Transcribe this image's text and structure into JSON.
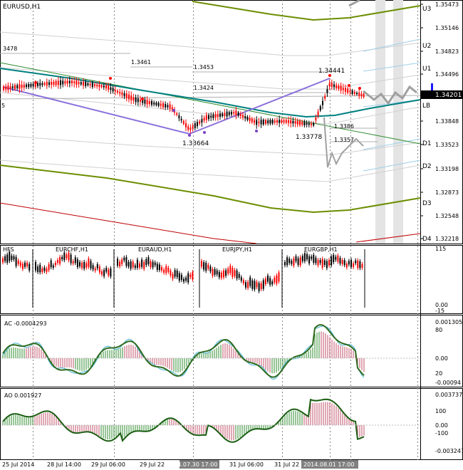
{
  "chart": {
    "title": "EURUSD,H1",
    "price_scale": [
      "1.35473",
      "1.35146",
      "1.34823",
      "1.34496",
      "1.34201",
      "1.33848",
      "1.33523",
      "1.33198",
      "1.32873",
      "1.32548",
      "1.32218"
    ],
    "current_price": "1.34201",
    "level_labels": [
      "U3",
      "U2",
      "U1",
      "LB",
      "D1",
      "D2",
      "D3",
      "D4"
    ],
    "annotations": [
      "3478",
      "1.3461",
      "1.3453",
      "1.3424",
      "1.34441",
      "1.33664",
      "1.33778",
      "1.3386",
      "1.3357"
    ],
    "left_marker": "5"
  },
  "hfs": {
    "label": "HFS",
    "subcharts": [
      "EURCHF,H1",
      "EURAUD,H1",
      "EURJPY,H1",
      "EURGBP,H1"
    ],
    "scale": [
      "115",
      "0.00",
      "-15"
    ]
  },
  "ac": {
    "label": "AC -0.0004293",
    "scale": [
      "0.001305",
      "80",
      "0.00",
      "20",
      "-0.00094"
    ]
  },
  "ao": {
    "label": "AO 0.001927",
    "scale": [
      "0.003737",
      "100",
      "0.00",
      "-100",
      "-0.003247"
    ]
  },
  "time_axis": {
    "labels": [
      "25 Jul 2014",
      "28 Jul 14:00",
      "29 Jul 06:00",
      "29 Jul 22",
      "31 Jul 06:00",
      "31 Jul 22"
    ],
    "highlights": [
      "2014.07.30 17:00",
      "2014.08.01 17:00"
    ]
  },
  "colors": {
    "bull": "#000000",
    "bear": "#ff0000",
    "mid_line": "#008080",
    "envelope": "#6b8e00",
    "zigzag": "#8a6fdc",
    "hfs_bull": "#000000",
    "hfs_bear": "#ff0000"
  }
}
